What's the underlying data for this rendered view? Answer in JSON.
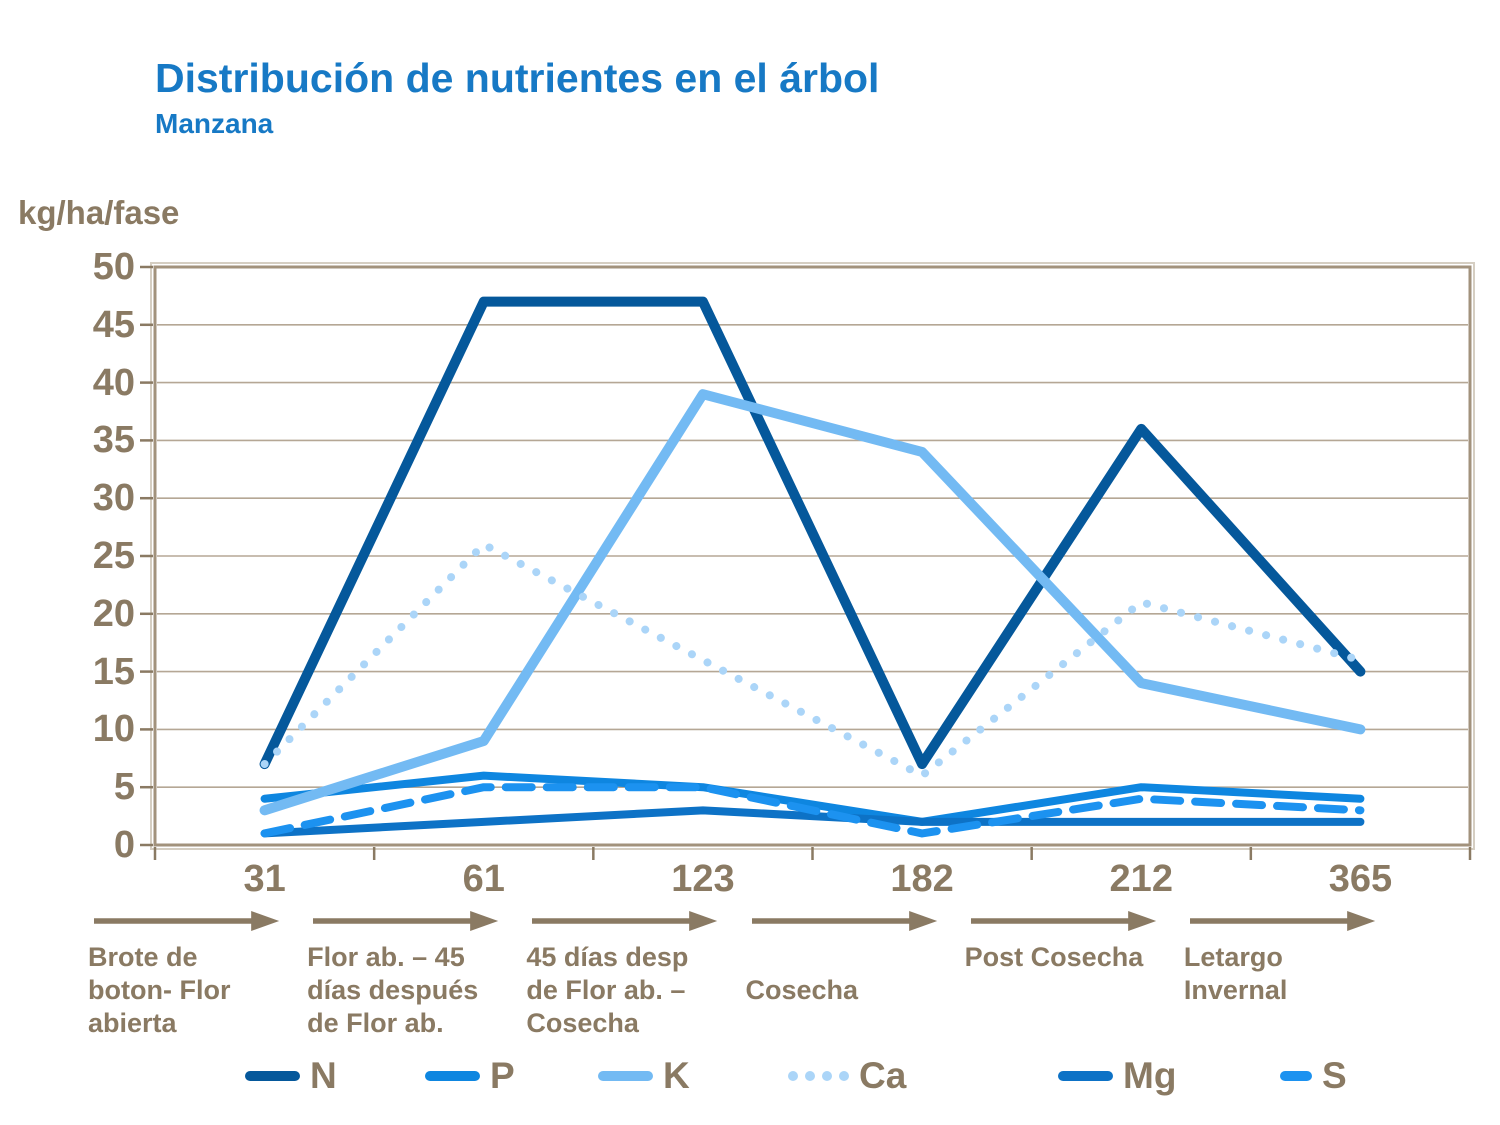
{
  "title": "Distribución de nutrientes en el árbol",
  "subtitle": "Manzana",
  "y_axis_label": "kg/ha/fase",
  "colors": {
    "title_blue": "#1779C5",
    "axis_text_brown": "#8A7A63",
    "frame_tan": "#A2927C",
    "frame_outer": "#D5CEC2",
    "gridline": "#B5A795",
    "background": "#FFFFFF"
  },
  "chart_data": {
    "type": "line",
    "categories": [
      "31",
      "61",
      "123",
      "182",
      "212",
      "365"
    ],
    "x_phase_labels": [
      "Brote de boton- Flor abierta",
      "Flor ab. – 45 días después de Flor ab.",
      "45 días desp de Flor ab. – Cosecha",
      "Cosecha",
      "Post Cosecha",
      "Letargo Invernal"
    ],
    "series": [
      {
        "name": "N",
        "style": "solid",
        "color": "#05589B",
        "width": 10,
        "values": [
          7,
          47,
          47,
          7,
          36,
          15
        ]
      },
      {
        "name": "P",
        "style": "solid",
        "color": "#0E86E0",
        "width": 8,
        "values": [
          4,
          6,
          5,
          2,
          5,
          4
        ]
      },
      {
        "name": "K",
        "style": "solid",
        "color": "#73BAF3",
        "width": 10,
        "values": [
          3,
          9,
          39,
          34,
          14,
          10
        ]
      },
      {
        "name": "Ca",
        "style": "dotted",
        "color": "#ABD5F8",
        "width": 8,
        "values": [
          7,
          26,
          16,
          6,
          21,
          16
        ]
      },
      {
        "name": "Mg",
        "style": "solid",
        "color": "#0D72C6",
        "width": 8,
        "values": [
          1,
          2,
          3,
          2,
          2,
          2
        ]
      },
      {
        "name": "S",
        "style": "dashed",
        "color": "#1C92F0",
        "width": 8,
        "values": [
          1,
          5,
          5,
          1,
          4,
          3
        ]
      }
    ],
    "ylim": [
      0,
      50
    ],
    "y_ticks": [
      0,
      5,
      10,
      15,
      20,
      25,
      30,
      35,
      40,
      45,
      50
    ],
    "grid": true,
    "legend_position": "bottom"
  }
}
